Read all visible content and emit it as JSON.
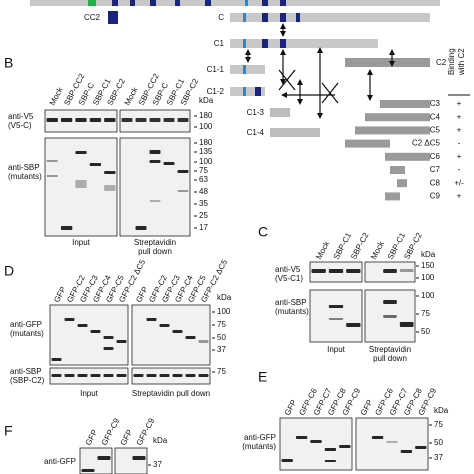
{
  "kda_unit": "kDa",
  "overview": {
    "cc2_label": "CC2"
  },
  "constructs": [
    "C",
    "C1",
    "C1-1",
    "C1-2",
    "C2",
    "C1-3",
    "C1-4"
  ],
  "binding": {
    "header": [
      "Binding",
      "with C2"
    ],
    "rows": [
      {
        "construct": "C3",
        "result": "+"
      },
      {
        "construct": "C4",
        "result": "+"
      },
      {
        "construct": "C5",
        "result": "+"
      },
      {
        "construct": "C2 ΔC5",
        "result": "-"
      },
      {
        "construct": "C6",
        "result": "+"
      },
      {
        "construct": "C7",
        "result": "-"
      },
      {
        "construct": "C8",
        "result": "+/-"
      },
      {
        "construct": "C9",
        "result": "+"
      }
    ]
  },
  "panels": {
    "B": {
      "label": "B",
      "lanes": [
        "Mock",
        "SBP-CC2",
        "SBP-C",
        "SBP-C1",
        "SBP-C2"
      ],
      "blots": [
        {
          "antibody": "anti-V5",
          "target": "(V5-C)",
          "kda": [
            180,
            100
          ]
        },
        {
          "antibody": "anti-SBP",
          "target": "(mutants)",
          "kda": [
            180,
            135,
            100,
            75,
            63,
            48,
            35,
            25,
            17
          ]
        }
      ],
      "groups": [
        [
          "Input"
        ],
        [
          "Streptavidin",
          "pull down"
        ]
      ]
    },
    "C": {
      "label": "C",
      "lanes": [
        "Mock",
        "SBP-C1",
        "SBP-C2"
      ],
      "blots": [
        {
          "antibody": "anti-V5",
          "target": "(V5-C1)",
          "kda": [
            150,
            100
          ]
        },
        {
          "antibody": "anti-SBP",
          "target": "(mutants)",
          "kda": [
            100,
            75,
            50
          ]
        }
      ],
      "groups": [
        [
          "Input"
        ],
        [
          "Streptavidin",
          "pull down"
        ]
      ]
    },
    "D": {
      "label": "D",
      "lanes": [
        "GFP",
        "GFP-C2",
        "GFP-C3",
        "GFP-C4",
        "GFP-C5",
        "GFP-C2 ΔC5"
      ],
      "blots": [
        {
          "antibody": "anti-GFP",
          "target": "(mutants)",
          "kda": [
            100,
            75,
            50,
            37
          ]
        },
        {
          "antibody": "anti-SBP",
          "target": "(SBP-C2)",
          "kda": [
            75
          ]
        }
      ],
      "groups": [
        [
          "Input"
        ],
        [
          "Streptavidin pull down"
        ]
      ]
    },
    "E": {
      "label": "E",
      "lanes": [
        "GFP",
        "GFP-C6",
        "GFP-C7",
        "GFP-C8",
        "GFP-C9"
      ],
      "blots": [
        {
          "antibody": "anti-GFP",
          "target": "(mutants)",
          "kda": [
            75,
            50,
            37
          ]
        }
      ]
    },
    "F": {
      "label": "F",
      "lanes": [
        "GFP",
        "GFP-C9"
      ],
      "blots": [
        {
          "antibody": "anti-GFP",
          "kda": [
            37
          ]
        }
      ]
    }
  }
}
